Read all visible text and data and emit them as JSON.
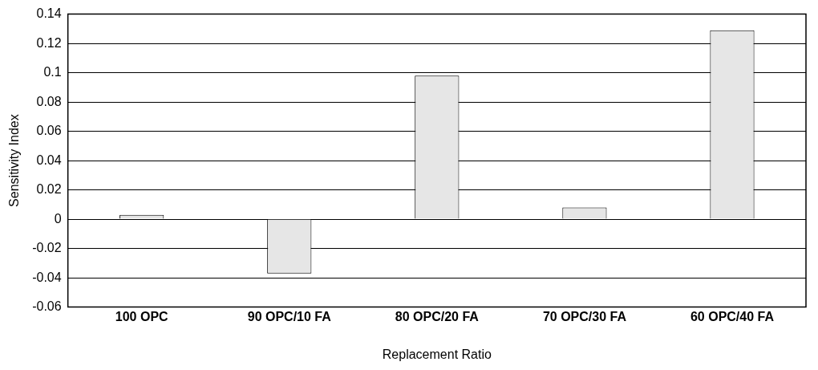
{
  "chart_data": {
    "type": "bar",
    "xlabel": "Replacement Ratio",
    "ylabel": "Sensitivity Index",
    "categories": [
      "100 OPC",
      "90 OPC/10 FA",
      "80 OPC/20 FA",
      "70 OPC/30 FA",
      "60 OPC/40 FA"
    ],
    "values": [
      0.003,
      -0.037,
      0.098,
      0.008,
      0.129
    ],
    "color": "#e6e6e6",
    "ylim": [
      -0.06,
      0.14
    ],
    "yticks": [
      -0.06,
      -0.04,
      -0.02,
      0,
      0.02,
      0.04,
      0.06,
      0.08,
      0.1,
      0.12,
      0.14
    ],
    "grid": "y"
  }
}
